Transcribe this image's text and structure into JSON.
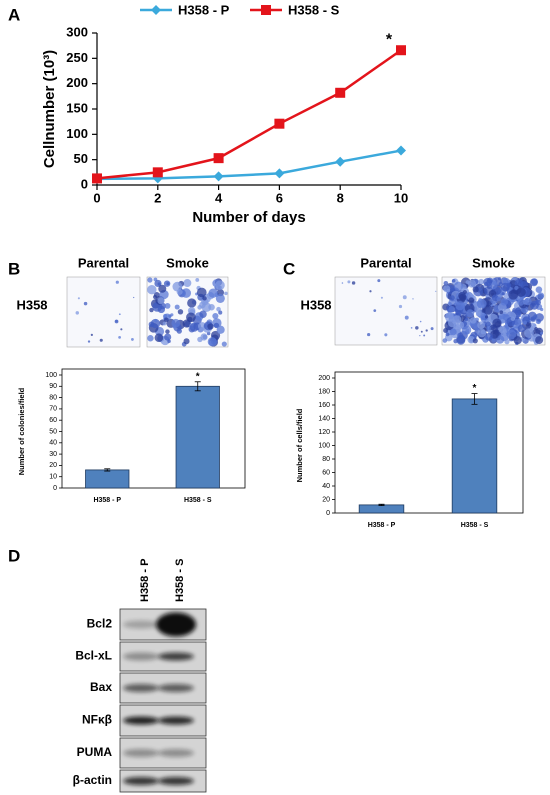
{
  "chart_data": [
    {
      "type": "line",
      "xlabel": "Number of days",
      "ylabel": "Cellnumber (10³)",
      "x": [
        0,
        2,
        4,
        6,
        8,
        10
      ],
      "series": [
        {
          "name": "H358 - P",
          "color": "#3ba9dc",
          "marker": "diamond",
          "values": [
            12,
            13,
            17,
            23,
            46,
            68
          ]
        },
        {
          "name": "H358 - S",
          "color": "#e3141b",
          "marker": "square",
          "values": [
            13,
            25,
            53,
            121,
            182,
            266
          ]
        }
      ],
      "xlim": [
        0,
        10
      ],
      "xticks": [
        0,
        2,
        4,
        6,
        8,
        10
      ],
      "ylim": [
        0,
        300
      ],
      "yticks": [
        0,
        50,
        100,
        150,
        200,
        250,
        300
      ],
      "annotation": "*",
      "legend": "top"
    },
    {
      "type": "bar",
      "ylabel": "Number of colonies/field",
      "categories": [
        "H358 - P",
        "H358 - S"
      ],
      "values": [
        16,
        90
      ],
      "errors": [
        1,
        4
      ],
      "color": "#4f81bd",
      "ylim": [
        0,
        100
      ],
      "yticks": [
        0,
        10,
        20,
        30,
        40,
        50,
        60,
        70,
        80,
        90,
        100
      ],
      "annotation": "*"
    },
    {
      "type": "bar",
      "ylabel": "Number of cells/field",
      "categories": [
        "H358 - P",
        "H358 - S"
      ],
      "values": [
        12,
        169
      ],
      "errors": [
        1,
        8
      ],
      "color": "#4f81bd",
      "ylim": [
        0,
        200
      ],
      "yticks": [
        0,
        20,
        40,
        60,
        80,
        100,
        120,
        140,
        160,
        180,
        200
      ],
      "annotation": "*"
    }
  ],
  "panel_labels": [
    "A",
    "B",
    "C",
    "D"
  ],
  "image_panels": [
    {
      "row": "H358",
      "columns": [
        "Parental",
        "Smoke"
      ]
    },
    {
      "row": "H358",
      "columns": [
        "Parental",
        "Smoke"
      ]
    }
  ],
  "blot": {
    "lanes": [
      "H358 - P",
      "H358 - S"
    ],
    "proteins": [
      "Bcl2",
      "Bcl-xL",
      "Bax",
      "NFκβ",
      "PUMA",
      "β-actin"
    ]
  }
}
